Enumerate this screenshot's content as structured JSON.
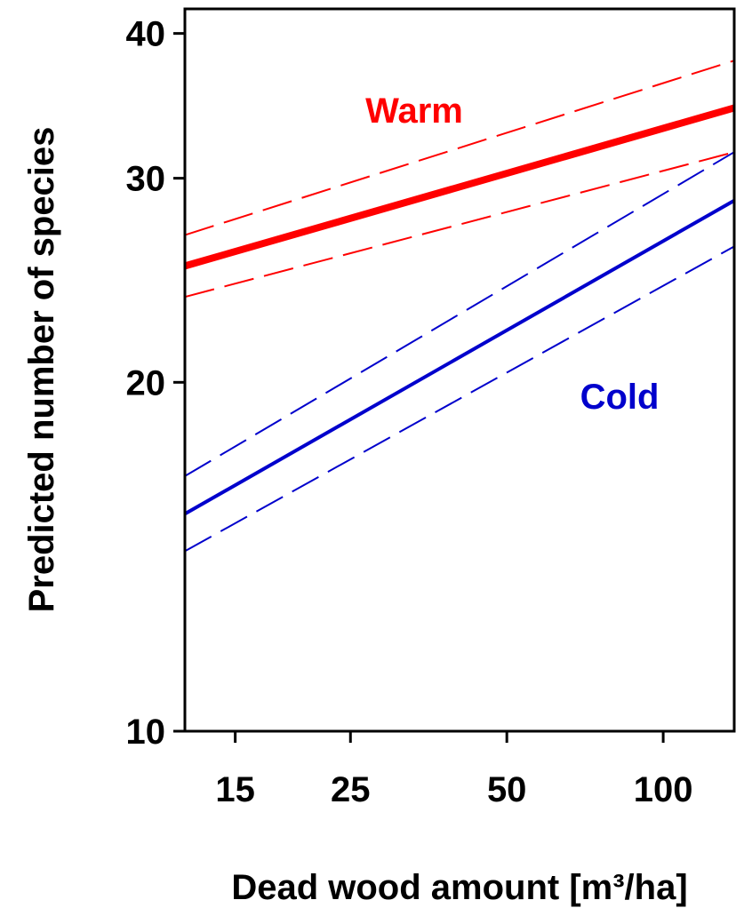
{
  "chart_data": {
    "type": "line",
    "xlabel": "Dead wood amount [m³/ha]",
    "ylabel": "Predicted number of species",
    "x_scale": "log",
    "y_scale": "log",
    "xlim": [
      12,
      137
    ],
    "ylim": [
      10,
      42
    ],
    "x_ticks": [
      15,
      25,
      50,
      100
    ],
    "y_ticks": [
      10,
      20,
      30,
      40
    ],
    "x_tick_labels": [
      "15",
      "25",
      "50",
      "100"
    ],
    "y_tick_labels": [
      "10",
      "20",
      "30",
      "40"
    ],
    "grid": false,
    "series": [
      {
        "name": "Warm",
        "color": "#ff0000",
        "x": [
          12,
          137
        ],
        "fit": [
          25.2,
          34.5
        ],
        "lower": [
          23.7,
          31.6
        ],
        "upper": [
          26.8,
          37.9
        ]
      },
      {
        "name": "Cold",
        "color": "#0000cc",
        "x": [
          12,
          137
        ],
        "fit": [
          15.4,
          28.7
        ],
        "lower": [
          14.3,
          26.2
        ],
        "upper": [
          16.6,
          31.6
        ]
      }
    ]
  }
}
